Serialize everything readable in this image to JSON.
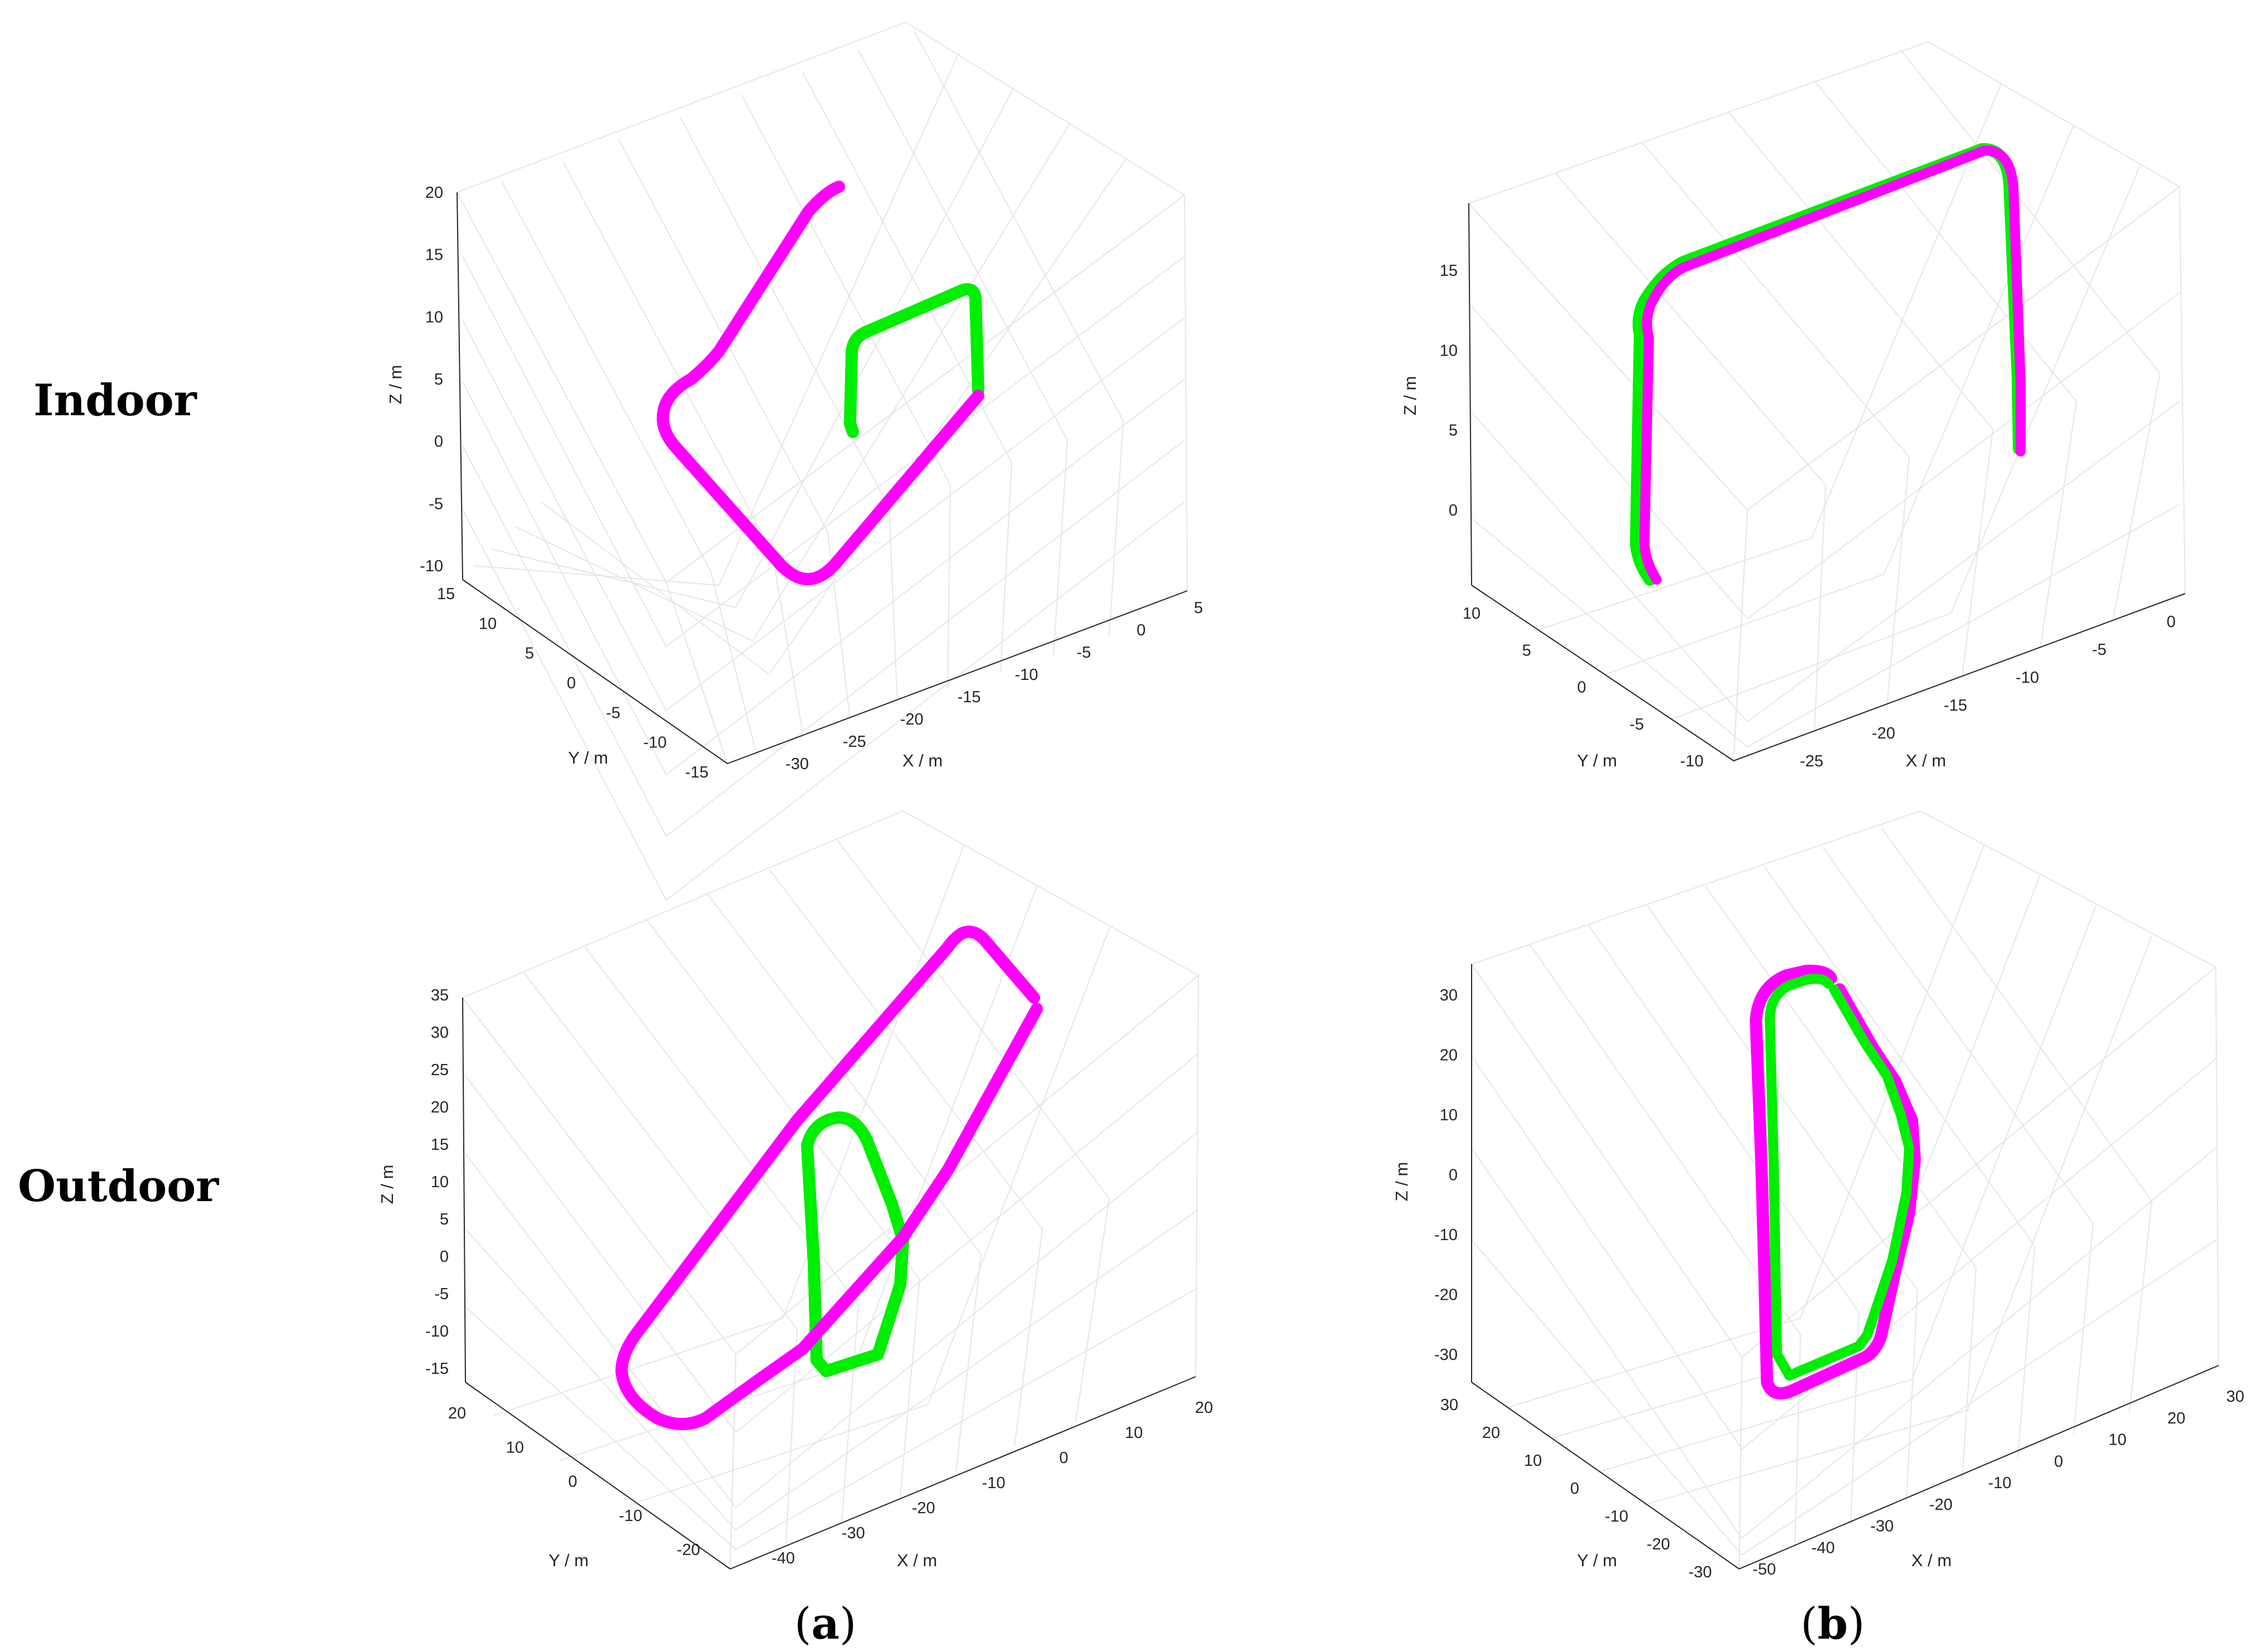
{
  "row_labels": [
    "Indoor",
    "Outdoor"
  ],
  "column_captions": [
    {
      "open": "(",
      "letter": "a",
      "close": ")"
    },
    {
      "open": "(",
      "letter": "b",
      "close": ")"
    }
  ],
  "colors": {
    "magenta": "#ff00ff",
    "green": "#00ee00",
    "axis": "#262626",
    "grid": "#e6e6e6"
  },
  "chart_data": [
    {
      "type": "line3d",
      "panel": "a-indoor",
      "xlabel": "X / m",
      "ylabel": "Y / m",
      "zlabel": "Z / m",
      "xticks": [
        -30,
        -25,
        -20,
        -15,
        -10,
        -5,
        0,
        5
      ],
      "yticks": [
        -15,
        -10,
        -5,
        0,
        5,
        10,
        15
      ],
      "zticks": [
        -10,
        -5,
        0,
        5,
        10,
        15,
        20
      ],
      "xlim": [
        -32,
        6
      ],
      "ylim": [
        -16,
        16
      ],
      "zlim": [
        -11,
        21
      ],
      "grid": true,
      "series": [
        {
          "color": "magenta",
          "points": [
            [
              5.5,
              15,
              -6
            ],
            [
              -6,
              -6,
              17
            ],
            [
              -10,
              -10,
              13
            ],
            [
              -21,
              -21,
              -6
            ],
            [
              -25,
              -25,
              -7
            ],
            [
              -25.5,
              -25.5,
              -3
            ],
            [
              -17,
              -17,
              20
            ]
          ]
        },
        {
          "color": "green",
          "points": [
            [
              5.5,
              15,
              -6
            ],
            [
              5.5,
              15,
              5
            ],
            [
              -6,
              -6,
              17
            ],
            [
              -11,
              -11,
              7
            ],
            [
              -11,
              -11,
              -2
            ]
          ]
        }
      ]
    },
    {
      "type": "line3d",
      "panel": "b-indoor",
      "xlabel": "X / m",
      "ylabel": "Y / m",
      "zlabel": "Z / m",
      "xticks": [
        -25,
        -20,
        -15,
        -10,
        -5,
        0
      ],
      "yticks": [
        -10,
        -5,
        0,
        5,
        10
      ],
      "zticks": [
        0,
        5,
        10,
        15
      ],
      "xlim": [
        -28,
        2
      ],
      "ylim": [
        -11,
        11
      ],
      "zlim": [
        -2,
        17
      ],
      "grid": true,
      "series": [
        {
          "color": "green",
          "points": [
            [
              -4,
              -9,
              -1
            ],
            [
              -4,
              -9,
              19
            ],
            [
              -24.5,
              -9.5,
              9
            ],
            [
              -25.5,
              -11,
              -5
            ],
            [
              -25.5,
              -11,
              -7
            ]
          ]
        },
        {
          "color": "magenta",
          "points": [
            [
              -4,
              -9,
              -1
            ],
            [
              -4,
              -9,
              19
            ],
            [
              -24.5,
              -9.5,
              9
            ],
            [
              -25.5,
              -11,
              -5
            ],
            [
              -25.5,
              -11,
              -7
            ]
          ]
        }
      ]
    },
    {
      "type": "line3d",
      "panel": "a-outdoor",
      "xlabel": "X / m",
      "ylabel": "Y / m",
      "zlabel": "Z / m",
      "xticks": [
        -40,
        -30,
        -20,
        -10,
        0,
        10,
        20
      ],
      "yticks": [
        -20,
        -10,
        0,
        10,
        20
      ],
      "zticks": [
        -15,
        -10,
        -5,
        0,
        5,
        10,
        15,
        20,
        25,
        30,
        35
      ],
      "xlim": [
        -45,
        24
      ],
      "ylim": [
        -25,
        25
      ],
      "zlim": [
        -16,
        37
      ],
      "grid": true,
      "series": [
        {
          "color": "magenta",
          "points": [
            [
              12,
              -6,
              23
            ],
            [
              -7,
              1,
              39
            ],
            [
              -42,
              -11,
              0
            ],
            [
              -45,
              -14,
              -4
            ],
            [
              -44,
              -12,
              -9
            ],
            [
              -21,
              -9,
              -16
            ],
            [
              -8,
              -3,
              -14
            ],
            [
              11,
              -4,
              20
            ]
          ]
        },
        {
          "color": "green",
          "points": [
            [
              -2,
              7,
              12
            ],
            [
              -8,
              13,
              4
            ],
            [
              -15,
              8,
              -9
            ],
            [
              -20,
              7,
              -10
            ],
            [
              -18,
              12,
              -3
            ],
            [
              -10,
              23,
              6
            ],
            [
              -6,
              22,
              17
            ]
          ]
        }
      ]
    },
    {
      "type": "line3d",
      "panel": "b-outdoor",
      "xlabel": "X / m",
      "ylabel": "Y / m",
      "zlabel": "Z / m",
      "xticks": [
        -50,
        -40,
        -30,
        -20,
        -10,
        0,
        10,
        20,
        30
      ],
      "yticks": [
        -30,
        -20,
        -10,
        0,
        10,
        20,
        30
      ],
      "zticks": [
        -30,
        -20,
        -10,
        0,
        10,
        20,
        30
      ],
      "xlim": [
        -55,
        33
      ],
      "ylim": [
        -33,
        33
      ],
      "zlim": [
        -33,
        33
      ],
      "grid": true,
      "series": [
        {
          "color": "magenta",
          "points": [
            [
              -30,
              28,
              33
            ],
            [
              -48,
              -3,
              13
            ],
            [
              -52,
              -20,
              -13
            ],
            [
              -46,
              -17,
              -29
            ],
            [
              -15,
              -4,
              -27
            ],
            [
              2,
              14,
              -11
            ],
            [
              8,
              19,
              -1
            ],
            [
              -8,
              21,
              16
            ],
            [
              -24,
              22,
              34
            ]
          ]
        },
        {
          "color": "green",
          "points": [
            [
              -29,
              25,
              29
            ],
            [
              -46,
              -5,
              11
            ],
            [
              -49,
              -17,
              -13
            ],
            [
              -44,
              -20,
              -25
            ],
            [
              -43,
              -16,
              -26
            ],
            [
              -22,
              -8,
              -25
            ],
            [
              -11,
              -2,
              -24
            ],
            [
              2,
              12,
              -11
            ],
            [
              6,
              17,
              -2
            ],
            [
              -6,
              20,
              15
            ],
            [
              -22,
              22,
              30
            ]
          ]
        }
      ]
    }
  ]
}
